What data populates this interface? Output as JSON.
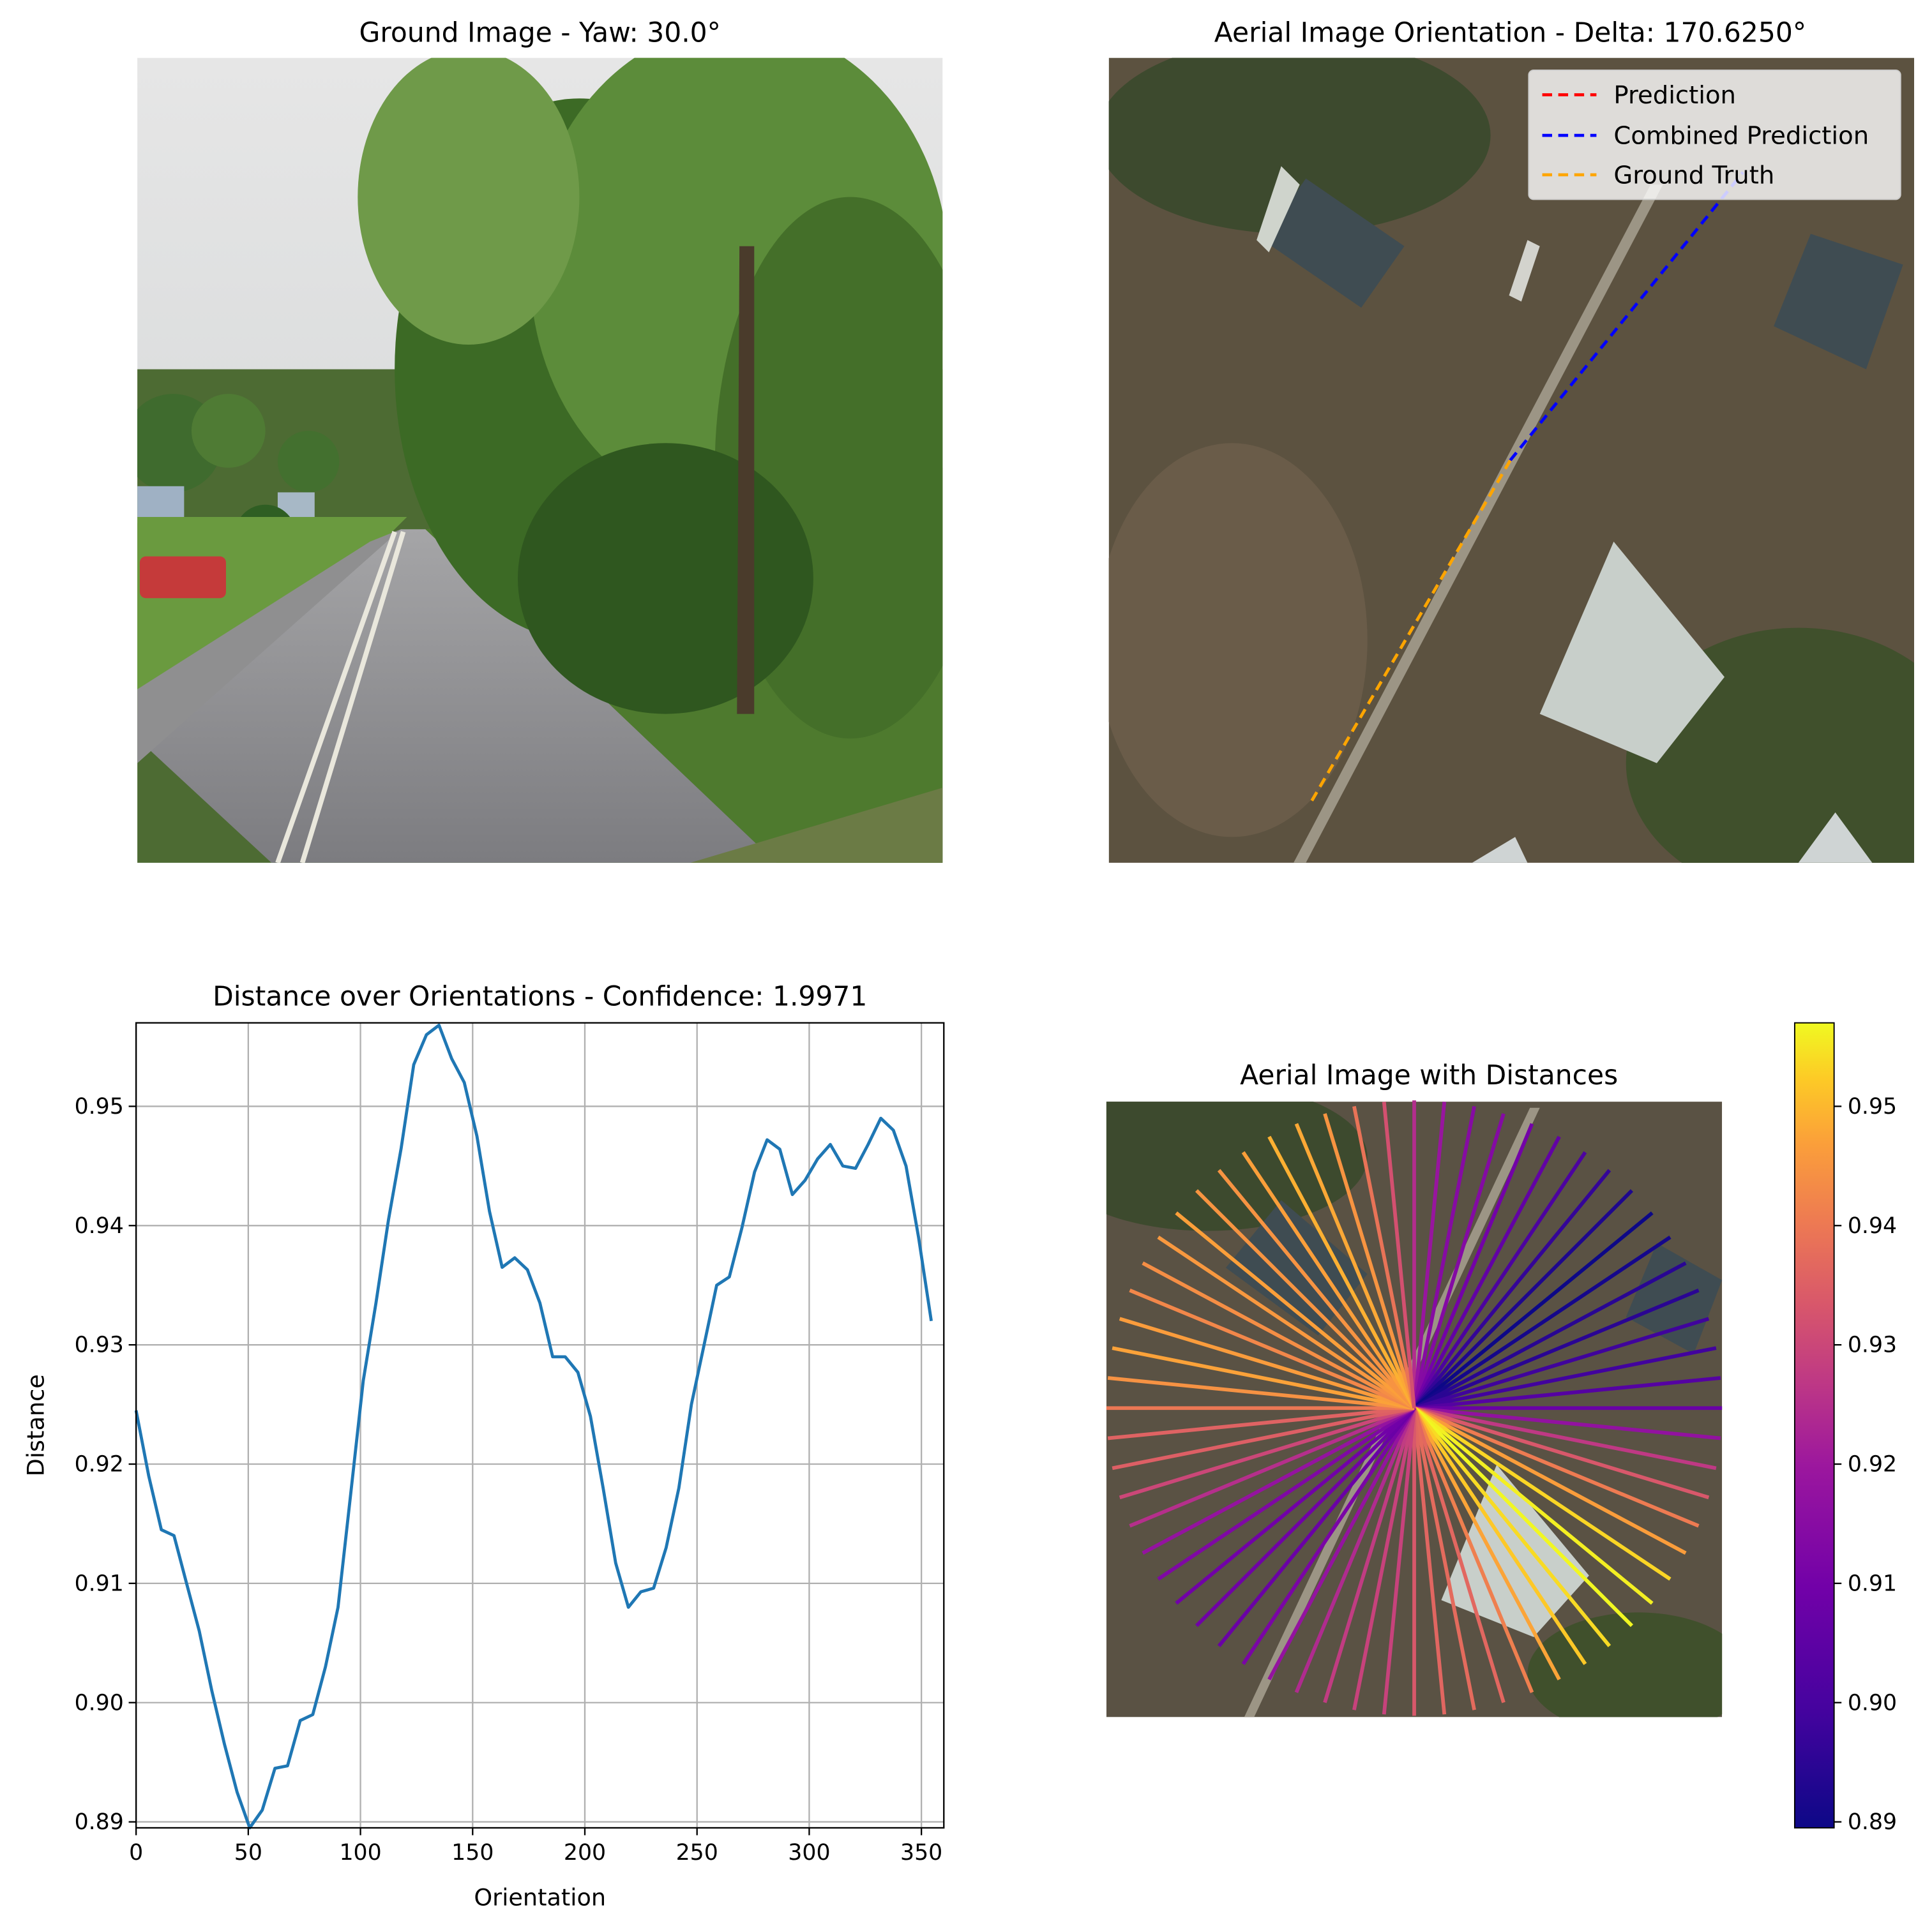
{
  "figure": {
    "ground_title": "Ground Image - Yaw: 30.0°",
    "aerial_title": "Aerial Image Orientation - Delta: 170.6250°",
    "distance_title": "Distance over Orientations - Confidence: 1.9971",
    "aerial_dist_title": "Aerial Image with Distances"
  },
  "legend": {
    "placement": "top-right",
    "items": [
      {
        "label": "Prediction",
        "color": "#ff0000"
      },
      {
        "label": "Combined Prediction",
        "color": "#0000ff"
      },
      {
        "label": "Ground Truth",
        "color": "#ffa500"
      }
    ]
  },
  "chart_data": [
    {
      "type": "line",
      "title": "Distance over Orientations - Confidence: 1.9971",
      "xlabel": "Orientation",
      "ylabel": "Distance",
      "xlim": [
        0,
        360
      ],
      "ylim": [
        0.8895,
        0.957
      ],
      "xticks": [
        0,
        50,
        100,
        150,
        200,
        250,
        300,
        350
      ],
      "yticks": [
        0.89,
        0.9,
        0.91,
        0.92,
        0.93,
        0.94,
        0.95
      ],
      "ytick_labels": [
        "0.89",
        "0.90",
        "0.91",
        "0.92",
        "0.93",
        "0.94",
        "0.95"
      ],
      "grid": true,
      "color": "#1f77b4",
      "x": [
        0,
        5.625,
        11.25,
        16.875,
        22.5,
        28.125,
        33.75,
        39.375,
        45,
        50.625,
        56.25,
        61.875,
        67.5,
        73.125,
        78.75,
        84.375,
        90,
        95.625,
        101.25,
        106.875,
        112.5,
        118.125,
        123.75,
        129.375,
        135,
        140.625,
        146.25,
        151.875,
        157.5,
        163.125,
        168.75,
        174.375,
        180,
        185.625,
        191.25,
        196.875,
        202.5,
        208.125,
        213.75,
        219.375,
        225,
        230.625,
        236.25,
        241.875,
        247.5,
        253.125,
        258.75,
        264.375,
        270,
        275.625,
        281.25,
        286.875,
        292.5,
        298.125,
        303.75,
        309.375,
        315,
        320.625,
        326.25,
        331.875,
        337.5,
        343.125,
        348.75,
        354.375
      ],
      "values": [
        0.9245,
        0.919,
        0.9145,
        0.914,
        0.91,
        0.906,
        0.901,
        0.8965,
        0.8925,
        0.8895,
        0.891,
        0.8945,
        0.8947,
        0.8985,
        0.899,
        0.903,
        0.908,
        0.9175,
        0.927,
        0.9335,
        0.9405,
        0.9465,
        0.9535,
        0.956,
        0.9568,
        0.954,
        0.952,
        0.9475,
        0.9412,
        0.9365,
        0.9373,
        0.9363,
        0.9335,
        0.929,
        0.929,
        0.9277,
        0.924,
        0.918,
        0.9117,
        0.908,
        0.9093,
        0.9096,
        0.913,
        0.918,
        0.925,
        0.93,
        0.935,
        0.9357,
        0.9398,
        0.9445,
        0.9472,
        0.9464,
        0.9426,
        0.9438,
        0.9456,
        0.9468,
        0.945,
        0.9448,
        0.9468,
        0.949,
        0.948,
        0.945,
        0.939,
        0.932
      ]
    },
    {
      "type": "heatmap",
      "title": "Aerial Image with Distances",
      "colormap": "plasma",
      "clim": [
        0.8895,
        0.957
      ],
      "colorbar_ticks": [
        0.89,
        0.9,
        0.91,
        0.92,
        0.93,
        0.94,
        0.95
      ],
      "colorbar_labels": [
        "0.89",
        "0.90",
        "0.91",
        "0.92",
        "0.93",
        "0.94",
        "0.95"
      ]
    }
  ]
}
